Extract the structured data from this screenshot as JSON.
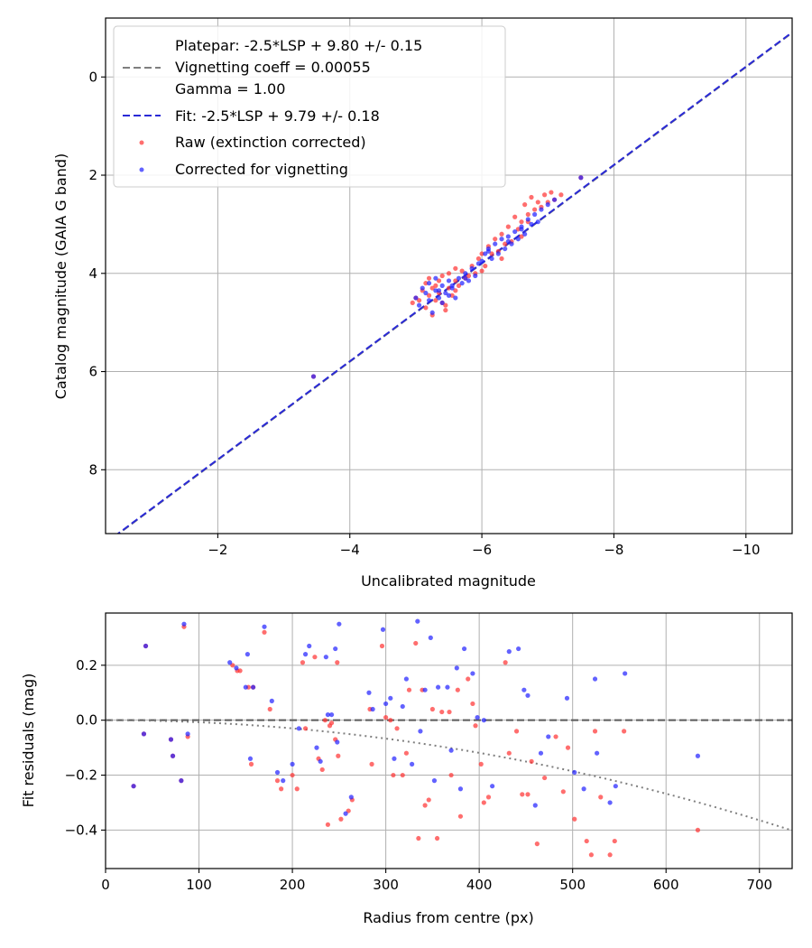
{
  "chart_data": [
    {
      "type": "scatter",
      "xlabel": "Uncalibrated magnitude",
      "ylabel": "Catalog magnitude (GAIA G band)",
      "xlim": [
        -0.3,
        -10.7
      ],
      "ylim": [
        9.3,
        -1.2
      ],
      "x_inverted": true,
      "y_inverted": true,
      "xticks": [
        -2,
        -4,
        -6,
        -8,
        -10
      ],
      "xtick_labels": [
        "−2",
        "−4",
        "−6",
        "−8",
        "−10"
      ],
      "yticks": [
        0,
        2,
        4,
        6,
        8
      ],
      "ytick_labels": [
        "0",
        "2",
        "4",
        "6",
        "8"
      ],
      "grid": true,
      "legend_position": "top-left",
      "legend": [
        {
          "label": "Platepar: -2.5*LSP + 9.80 +/- 0.15\nVignetting coeff = 0.00055\nGamma = 1.00",
          "kind": "dashed-line",
          "color": "#7f7f7f"
        },
        {
          "label": "Fit: -2.5*LSP + 9.79 +/- 0.18",
          "kind": "dashed-line",
          "color": "#2a2ad6"
        },
        {
          "label": "Raw (extinction corrected)",
          "kind": "point",
          "color": "#ff3030"
        },
        {
          "label": "Corrected for vignetting",
          "kind": "point",
          "color": "#1f1fff"
        }
      ],
      "lines": [
        {
          "name": "Platepar",
          "slope": 1,
          "intercept": 9.8,
          "color": "#7f7f7f",
          "style": "dashed"
        },
        {
          "name": "Fit",
          "slope": 1,
          "intercept": 9.79,
          "color": "#2a2ad6",
          "style": "dashed"
        }
      ],
      "series": [
        {
          "name": "Raw (extinction corrected)",
          "color": "#ff3030",
          "x": [
            -3.45,
            -4.95,
            -5.0,
            -5.05,
            -5.1,
            -5.15,
            -5.15,
            -5.2,
            -5.2,
            -5.25,
            -5.3,
            -5.3,
            -5.35,
            -5.35,
            -5.4,
            -5.4,
            -5.45,
            -5.5,
            -5.5,
            -5.55,
            -5.6,
            -5.6,
            -5.65,
            -5.7,
            -5.75,
            -5.8,
            -5.85,
            -5.9,
            -5.95,
            -6.0,
            -6.05,
            -6.1,
            -6.15,
            -6.2,
            -6.25,
            -6.3,
            -6.35,
            -6.4,
            -6.45,
            -6.5,
            -6.55,
            -6.6,
            -6.65,
            -6.7,
            -6.75,
            -6.8,
            -6.85,
            -6.9,
            -6.95,
            -7.0,
            -7.05,
            -7.1,
            -7.2,
            -7.5,
            -5.25,
            -5.45,
            -5.6,
            -6.0,
            -6.3,
            -6.6,
            -6.7
          ],
          "y": [
            6.1,
            4.6,
            4.5,
            4.55,
            4.35,
            4.2,
            4.7,
            4.45,
            4.1,
            4.85,
            4.25,
            4.55,
            4.15,
            4.4,
            4.6,
            4.05,
            4.75,
            4.3,
            4.0,
            4.45,
            4.15,
            4.35,
            4.25,
            3.95,
            4.1,
            4.05,
            3.85,
            4.0,
            3.7,
            3.6,
            3.85,
            3.45,
            3.6,
            3.3,
            3.55,
            3.2,
            3.4,
            3.05,
            3.35,
            2.85,
            3.1,
            2.95,
            2.6,
            2.8,
            2.45,
            2.7,
            2.55,
            2.65,
            2.4,
            2.55,
            2.35,
            2.5,
            2.4,
            2.05,
            4.3,
            4.65,
            3.9,
            3.95,
            3.7,
            3.25,
            2.95
          ]
        },
        {
          "name": "Corrected for vignetting",
          "color": "#1f1fff",
          "x": [
            -3.45,
            -5.0,
            -5.05,
            -5.1,
            -5.15,
            -5.2,
            -5.2,
            -5.25,
            -5.3,
            -5.3,
            -5.35,
            -5.4,
            -5.4,
            -5.45,
            -5.5,
            -5.5,
            -5.55,
            -5.6,
            -5.65,
            -5.7,
            -5.75,
            -5.8,
            -5.85,
            -5.9,
            -5.95,
            -6.0,
            -6.05,
            -6.1,
            -6.15,
            -6.2,
            -6.25,
            -6.3,
            -6.35,
            -6.4,
            -6.45,
            -6.5,
            -6.55,
            -6.6,
            -6.65,
            -6.7,
            -6.75,
            -6.8,
            -6.85,
            -6.9,
            -7.0,
            -7.1,
            -7.5,
            -5.35,
            -5.55,
            -5.75,
            -6.1,
            -6.4,
            -6.6
          ],
          "y": [
            6.1,
            4.5,
            4.65,
            4.3,
            4.4,
            4.2,
            4.55,
            4.8,
            4.35,
            4.1,
            4.5,
            4.25,
            4.6,
            4.4,
            4.15,
            4.45,
            4.3,
            4.5,
            4.1,
            4.2,
            4.0,
            4.15,
            3.9,
            4.05,
            3.8,
            3.75,
            3.6,
            3.5,
            3.7,
            3.4,
            3.6,
            3.3,
            3.5,
            3.25,
            3.4,
            3.15,
            3.3,
            3.05,
            3.2,
            2.9,
            3.0,
            2.8,
            2.95,
            2.7,
            2.6,
            2.5,
            2.05,
            4.35,
            4.25,
            4.1,
            3.55,
            3.35,
            3.1
          ]
        }
      ]
    },
    {
      "type": "scatter",
      "xlabel": "Radius from centre (px)",
      "ylabel": "Fit residuals (mag)",
      "xlim": [
        0,
        735
      ],
      "ylim": [
        -0.54,
        0.39
      ],
      "xticks": [
        0,
        100,
        200,
        300,
        400,
        500,
        600,
        700
      ],
      "xtick_labels": [
        "0",
        "100",
        "200",
        "300",
        "400",
        "500",
        "600",
        "700"
      ],
      "yticks": [
        0.2,
        0.0,
        -0.2,
        -0.4
      ],
      "ytick_labels": [
        "0.2",
        "0.0",
        "−0.2",
        "−0.4"
      ],
      "grid": true,
      "lines": [
        {
          "name": "zero",
          "y": 0,
          "color": "#5a5a5a",
          "style": "dashed"
        },
        {
          "name": "vignetting",
          "coeff": 0.00055,
          "color": "#7f7f7f",
          "style": "dotted"
        }
      ],
      "series": [
        {
          "name": "Raw (extinction corrected)",
          "color": "#ff3030",
          "x": [
            30,
            41,
            43,
            70,
            72,
            81,
            84,
            88,
            136,
            141,
            144,
            153,
            156,
            158,
            170,
            176,
            184,
            188,
            200,
            205,
            211,
            214,
            224,
            228,
            232,
            235,
            238,
            240,
            242,
            246,
            248,
            249,
            252,
            260,
            264,
            283,
            285,
            296,
            300,
            305,
            308,
            312,
            318,
            322,
            325,
            332,
            335,
            339,
            342,
            346,
            350,
            355,
            360,
            368,
            370,
            377,
            380,
            388,
            393,
            396,
            402,
            405,
            410,
            428,
            432,
            440,
            446,
            452,
            456,
            462,
            470,
            482,
            490,
            495,
            502,
            515,
            520,
            524,
            530,
            540,
            545,
            555,
            634
          ],
          "y": [
            -0.24,
            -0.05,
            0.27,
            -0.07,
            -0.13,
            -0.22,
            0.34,
            -0.06,
            0.2,
            0.18,
            0.18,
            0.12,
            -0.16,
            0.12,
            0.32,
            0.04,
            -0.22,
            -0.25,
            -0.2,
            -0.25,
            0.21,
            -0.03,
            0.23,
            -0.14,
            -0.18,
            0.0,
            -0.38,
            -0.02,
            -0.01,
            -0.07,
            0.21,
            -0.13,
            -0.36,
            -0.33,
            -0.29,
            0.04,
            -0.16,
            0.27,
            0.01,
            0.0,
            -0.2,
            -0.03,
            -0.2,
            -0.12,
            0.11,
            0.28,
            -0.43,
            0.11,
            -0.31,
            -0.29,
            0.04,
            -0.43,
            0.03,
            0.03,
            -0.2,
            0.11,
            -0.35,
            0.15,
            0.06,
            -0.02,
            -0.16,
            -0.3,
            -0.28,
            0.21,
            -0.12,
            -0.04,
            -0.27,
            -0.27,
            -0.15,
            -0.45,
            -0.21,
            -0.06,
            -0.26,
            -0.1,
            -0.36,
            -0.44,
            -0.49,
            -0.04,
            -0.28,
            -0.49,
            -0.44,
            -0.04,
            -0.4
          ]
        },
        {
          "name": "Corrected for vignetting",
          "color": "#1f1fff",
          "x": [
            30,
            41,
            43,
            70,
            72,
            81,
            84,
            88,
            133,
            140,
            150,
            152,
            155,
            158,
            170,
            178,
            184,
            190,
            200,
            207,
            214,
            218,
            226,
            230,
            236,
            238,
            242,
            246,
            248,
            250,
            257,
            263,
            282,
            286,
            297,
            300,
            305,
            309,
            318,
            322,
            328,
            334,
            337,
            342,
            348,
            352,
            356,
            366,
            370,
            376,
            380,
            384,
            393,
            398,
            405,
            414,
            432,
            442,
            448,
            452,
            460,
            466,
            474,
            494,
            502,
            512,
            524,
            526,
            540,
            546,
            556,
            634
          ],
          "y": [
            -0.24,
            -0.05,
            0.27,
            -0.07,
            -0.13,
            -0.22,
            0.35,
            -0.05,
            0.21,
            0.19,
            0.12,
            0.24,
            -0.14,
            0.12,
            0.34,
            0.07,
            -0.19,
            -0.22,
            -0.16,
            -0.03,
            0.24,
            0.27,
            -0.1,
            -0.15,
            0.23,
            0.02,
            0.02,
            0.26,
            -0.08,
            0.35,
            -0.34,
            -0.28,
            0.1,
            0.04,
            0.33,
            0.06,
            0.08,
            -0.14,
            0.05,
            0.15,
            -0.16,
            0.36,
            -0.04,
            0.11,
            0.3,
            -0.22,
            0.12,
            0.12,
            -0.11,
            0.19,
            -0.25,
            0.26,
            0.17,
            0.01,
            0.0,
            -0.24,
            0.25,
            0.26,
            0.11,
            0.09,
            -0.31,
            -0.12,
            -0.06,
            0.08,
            -0.19,
            -0.25,
            0.15,
            -0.12,
            -0.3,
            -0.24,
            0.17,
            -0.13
          ]
        }
      ]
    }
  ]
}
